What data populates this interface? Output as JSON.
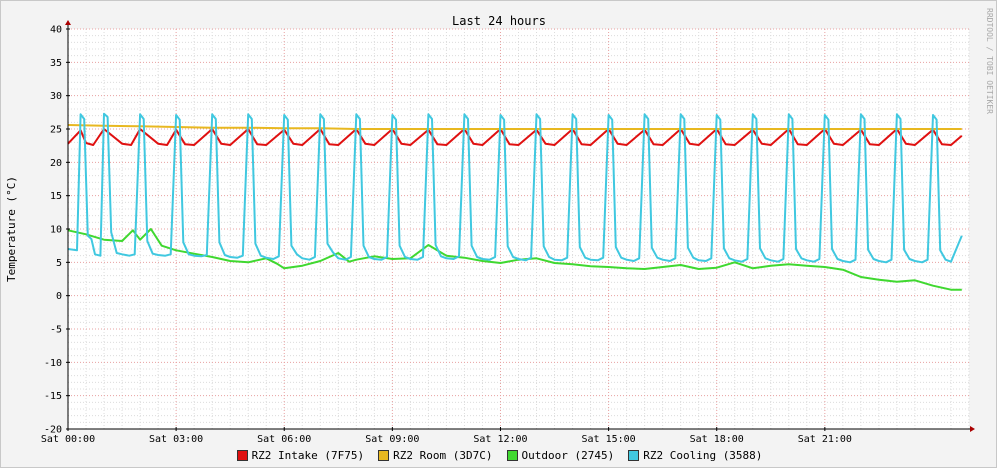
{
  "chart_data": {
    "type": "line",
    "title": "Last 24 hours",
    "ylabel": "Temperature (°C)",
    "watermark": "RRDTOOL / TOBI OETIKER",
    "ylim": [
      -20,
      40
    ],
    "xlim_hours": [
      0,
      25
    ],
    "y_ticks": [
      "-20",
      "-15",
      "-10",
      "-5",
      "0",
      "5",
      "10",
      "15",
      "20",
      "25",
      "30",
      "35",
      "40"
    ],
    "x_tick_labels": [
      "Sat 00:00",
      "Sat 03:00",
      "Sat 06:00",
      "Sat 09:00",
      "Sat 12:00",
      "Sat 15:00",
      "Sat 18:00",
      "Sat 21:00"
    ],
    "x_tick_hours": [
      0,
      3,
      6,
      9,
      12,
      15,
      18,
      21
    ],
    "grid": true,
    "legend_position": "bottom",
    "series": [
      {
        "name": "RZ2 Intake (7F75)",
        "color": "#e01010",
        "x": [
          0.0,
          0.35,
          0.5,
          0.7,
          1.0,
          1.5,
          1.75,
          2.0,
          2.5,
          2.75,
          3.0,
          3.25,
          3.5,
          4.0,
          4.25,
          4.5,
          5.0,
          5.25,
          5.5,
          6.0,
          6.25,
          6.5,
          7.0,
          7.25,
          7.5,
          8.0,
          8.25,
          8.5,
          9.0,
          9.25,
          9.5,
          10.0,
          10.25,
          10.5,
          11.0,
          11.25,
          11.5,
          12.0,
          12.25,
          12.5,
          13.0,
          13.25,
          13.5,
          14.0,
          14.25,
          14.5,
          15.0,
          15.25,
          15.5,
          16.0,
          16.25,
          16.5,
          17.0,
          17.25,
          17.5,
          18.0,
          18.25,
          18.5,
          19.0,
          19.25,
          19.5,
          20.0,
          20.25,
          20.5,
          21.0,
          21.25,
          21.5,
          22.0,
          22.25,
          22.5,
          23.0,
          23.25,
          23.5,
          24.0,
          24.25,
          24.5,
          24.8
        ],
        "values": [
          22.8,
          24.8,
          22.9,
          22.6,
          25.0,
          22.8,
          22.6,
          25.0,
          22.8,
          22.6,
          24.9,
          22.7,
          22.6,
          25.0,
          22.8,
          22.6,
          25.0,
          22.7,
          22.6,
          24.9,
          22.8,
          22.6,
          25.0,
          22.7,
          22.6,
          25.0,
          22.8,
          22.6,
          25.0,
          22.8,
          22.6,
          24.9,
          22.7,
          22.6,
          25.0,
          22.8,
          22.6,
          25.0,
          22.7,
          22.6,
          24.9,
          22.8,
          22.6,
          25.0,
          22.7,
          22.6,
          25.0,
          22.8,
          22.6,
          24.9,
          22.7,
          22.6,
          25.0,
          22.8,
          22.6,
          25.0,
          22.7,
          22.6,
          24.9,
          22.8,
          22.6,
          25.0,
          22.7,
          22.6,
          25.0,
          22.8,
          22.6,
          24.9,
          22.7,
          22.6,
          25.0,
          22.8,
          22.6,
          24.9,
          22.7,
          22.6,
          24.0
        ]
      },
      {
        "name": "RZ2 Room (3D7C)",
        "color": "#e8b820",
        "x": [
          0,
          1,
          2,
          3,
          4,
          5,
          6,
          7,
          8,
          9,
          10,
          11,
          12,
          13,
          14,
          15,
          16,
          17,
          18,
          19,
          20,
          21,
          22,
          23,
          24,
          24.8
        ],
        "values": [
          25.6,
          25.5,
          25.4,
          25.3,
          25.2,
          25.2,
          25.1,
          25.1,
          25.0,
          25.0,
          25.0,
          25.0,
          25.0,
          25.0,
          25.0,
          25.0,
          25.0,
          25.0,
          25.0,
          25.0,
          25.0,
          25.0,
          25.0,
          25.0,
          25.0,
          25.0
        ]
      },
      {
        "name": "Outdoor (2745)",
        "color": "#40d830",
        "x": [
          0.0,
          0.5,
          1.0,
          1.5,
          1.8,
          2.0,
          2.3,
          2.6,
          3.0,
          3.5,
          4.0,
          4.5,
          5.0,
          5.5,
          5.8,
          6.0,
          6.5,
          7.0,
          7.5,
          7.8,
          8.0,
          8.5,
          9.0,
          9.5,
          10.0,
          10.5,
          11.0,
          11.5,
          12.0,
          12.5,
          13.0,
          13.5,
          14.0,
          14.5,
          15.0,
          15.5,
          16.0,
          16.5,
          17.0,
          17.5,
          18.0,
          18.5,
          19.0,
          19.5,
          20.0,
          20.5,
          21.0,
          21.5,
          22.0,
          22.5,
          23.0,
          23.5,
          24.0,
          24.5,
          24.8
        ],
        "values": [
          9.8,
          9.2,
          8.4,
          8.2,
          9.8,
          8.4,
          10.0,
          7.5,
          6.8,
          6.3,
          5.8,
          5.2,
          5.0,
          5.6,
          4.8,
          4.1,
          4.5,
          5.2,
          6.4,
          5.1,
          5.4,
          5.9,
          5.5,
          5.6,
          7.6,
          6.0,
          5.7,
          5.2,
          4.9,
          5.4,
          5.6,
          4.9,
          4.7,
          4.4,
          4.3,
          4.1,
          4.0,
          4.3,
          4.6,
          4.0,
          4.2,
          5.0,
          4.1,
          4.5,
          4.7,
          4.5,
          4.3,
          3.9,
          2.8,
          2.4,
          2.1,
          2.3,
          1.5,
          0.9,
          0.9
        ]
      },
      {
        "name": "RZ2 Cooling (3588)",
        "color": "#40c8e0",
        "x": [
          0.0,
          0.25,
          0.35,
          0.45,
          0.55,
          0.65,
          0.75,
          0.9,
          1.0,
          1.1,
          1.2,
          1.35,
          1.5,
          1.7,
          1.85,
          2.0,
          2.1,
          2.2,
          2.35,
          2.5,
          2.7,
          2.85,
          3.0,
          3.1,
          3.2,
          3.35,
          3.5,
          3.7,
          3.85,
          4.0,
          4.1,
          4.2,
          4.35,
          4.5,
          4.7,
          4.85,
          5.0,
          5.1,
          5.2,
          5.35,
          5.5,
          5.7,
          5.85,
          6.0,
          6.1,
          6.2,
          6.35,
          6.5,
          6.7,
          6.85,
          7.0,
          7.1,
          7.2,
          7.35,
          7.5,
          7.7,
          7.85,
          8.0,
          8.1,
          8.2,
          8.35,
          8.5,
          8.7,
          8.85,
          9.0,
          9.1,
          9.2,
          9.35,
          9.5,
          9.7,
          9.85,
          10.0,
          10.1,
          10.2,
          10.35,
          10.5,
          10.7,
          10.85,
          11.0,
          11.1,
          11.2,
          11.35,
          11.5,
          11.7,
          11.85,
          12.0,
          12.1,
          12.2,
          12.35,
          12.5,
          12.7,
          12.85,
          13.0,
          13.1,
          13.2,
          13.35,
          13.5,
          13.7,
          13.85,
          14.0,
          14.1,
          14.2,
          14.35,
          14.5,
          14.7,
          14.85,
          15.0,
          15.1,
          15.2,
          15.35,
          15.5,
          15.7,
          15.85,
          16.0,
          16.1,
          16.2,
          16.35,
          16.5,
          16.7,
          16.85,
          17.0,
          17.1,
          17.2,
          17.35,
          17.5,
          17.7,
          17.85,
          18.0,
          18.1,
          18.2,
          18.35,
          18.5,
          18.7,
          18.85,
          19.0,
          19.1,
          19.2,
          19.35,
          19.5,
          19.7,
          19.85,
          20.0,
          20.1,
          20.2,
          20.35,
          20.5,
          20.7,
          20.85,
          21.0,
          21.1,
          21.2,
          21.35,
          21.5,
          21.7,
          21.85,
          22.0,
          22.1,
          22.2,
          22.35,
          22.5,
          22.7,
          22.85,
          23.0,
          23.1,
          23.2,
          23.35,
          23.5,
          23.7,
          23.85,
          24.0,
          24.1,
          24.2,
          24.35,
          24.5,
          24.8
        ],
        "values": [
          7.0,
          6.8,
          27.2,
          26.5,
          9.0,
          8.5,
          6.2,
          6.0,
          27.3,
          26.8,
          9.5,
          6.4,
          6.2,
          6.0,
          6.2,
          27.2,
          26.5,
          8.2,
          6.3,
          6.1,
          6.0,
          6.2,
          27.1,
          26.4,
          8.0,
          6.2,
          6.0,
          5.9,
          6.1,
          27.2,
          26.5,
          8.0,
          6.1,
          5.8,
          5.7,
          6.0,
          27.2,
          26.5,
          7.8,
          6.0,
          5.7,
          5.5,
          5.9,
          27.1,
          26.4,
          7.5,
          6.2,
          5.6,
          5.4,
          5.8,
          27.2,
          26.5,
          7.8,
          6.5,
          5.6,
          5.4,
          5.8,
          27.2,
          26.5,
          7.5,
          5.8,
          5.5,
          5.4,
          5.8,
          27.1,
          26.4,
          7.5,
          5.8,
          5.5,
          5.4,
          5.8,
          27.2,
          26.5,
          7.6,
          5.9,
          5.6,
          5.5,
          5.9,
          27.2,
          26.5,
          7.5,
          5.8,
          5.5,
          5.4,
          5.8,
          27.1,
          26.4,
          7.4,
          5.8,
          5.5,
          5.3,
          5.7,
          27.2,
          26.5,
          7.4,
          5.8,
          5.4,
          5.3,
          5.7,
          27.2,
          26.5,
          7.3,
          5.7,
          5.4,
          5.3,
          5.7,
          27.1,
          26.4,
          7.3,
          5.7,
          5.4,
          5.2,
          5.6,
          27.2,
          26.5,
          7.2,
          5.7,
          5.4,
          5.2,
          5.6,
          27.2,
          26.5,
          7.2,
          5.7,
          5.3,
          5.2,
          5.6,
          27.1,
          26.4,
          7.1,
          5.6,
          5.3,
          5.1,
          5.5,
          27.2,
          26.5,
          7.1,
          5.6,
          5.3,
          5.1,
          5.5,
          27.2,
          26.5,
          7.0,
          5.6,
          5.3,
          5.1,
          5.5,
          27.1,
          26.4,
          7.0,
          5.5,
          5.2,
          5.0,
          5.4,
          27.2,
          26.5,
          6.9,
          5.5,
          5.2,
          5.0,
          5.4,
          27.2,
          26.5,
          6.9,
          5.5,
          5.2,
          5.0,
          5.4,
          27.1,
          26.4,
          6.8,
          5.4,
          5.1,
          9.0
        ]
      }
    ]
  }
}
